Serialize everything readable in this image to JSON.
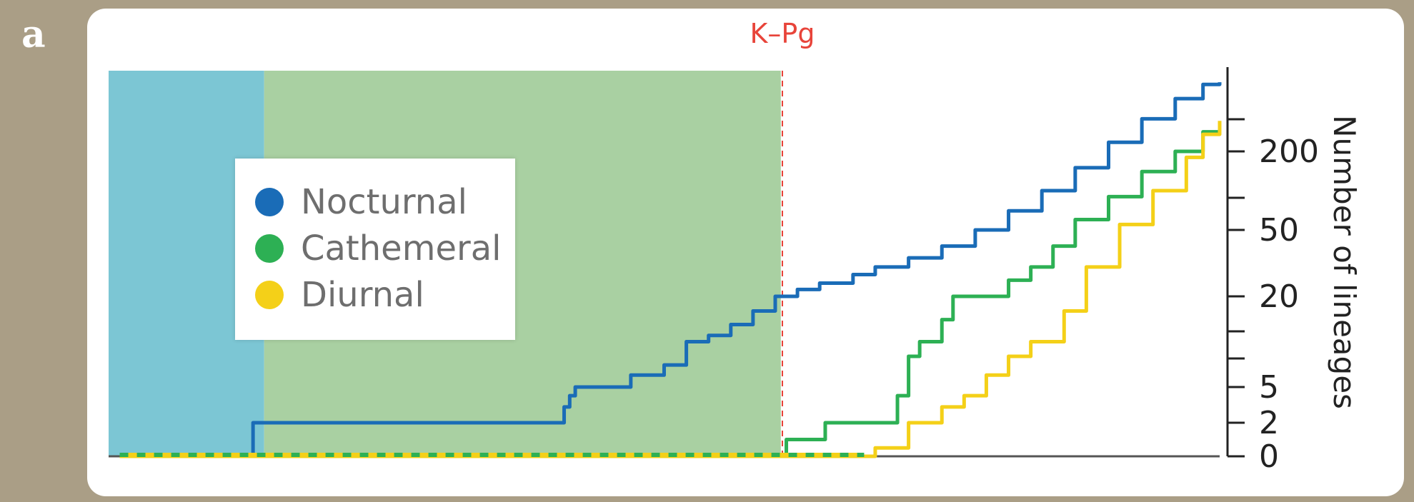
{
  "panel_label": "a",
  "chart_data": {
    "type": "line",
    "title": "",
    "xlabel": "",
    "ylabel": "Number of lineages",
    "y_scale": "log-like",
    "yticks_labeled": [
      "0",
      "2",
      "5",
      "20",
      "50",
      "200"
    ],
    "ylim": [
      0,
      600
    ],
    "annotation": "K–Pg",
    "legend": {
      "placement": "upper-left",
      "entries": [
        {
          "label": "Nocturnal",
          "color": "#1a6cb7"
        },
        {
          "label": "Cathemeral",
          "color": "#2db054"
        },
        {
          "label": "Diurnal",
          "color": "#f4d018"
        }
      ]
    },
    "background_bands": [
      {
        "color": "#7cc6d4",
        "from": 0.0,
        "to": 0.14
      },
      {
        "color": "#a9d0a2",
        "from": 0.14,
        "to": 0.605
      }
    ],
    "series": [
      {
        "name": "Nocturnal",
        "color": "#1a6cb7",
        "points": [
          [
            0.01,
            0
          ],
          [
            0.13,
            2
          ],
          [
            0.41,
            3
          ],
          [
            0.415,
            4
          ],
          [
            0.42,
            5
          ],
          [
            0.47,
            5
          ],
          [
            0.47,
            6
          ],
          [
            0.48,
            6
          ],
          [
            0.5,
            7
          ],
          [
            0.51,
            7
          ],
          [
            0.52,
            10
          ],
          [
            0.54,
            11
          ],
          [
            0.56,
            13
          ],
          [
            0.58,
            16
          ],
          [
            0.6,
            20
          ],
          [
            0.605,
            20
          ],
          [
            0.62,
            22
          ],
          [
            0.64,
            24
          ],
          [
            0.67,
            27
          ],
          [
            0.69,
            30
          ],
          [
            0.72,
            34
          ],
          [
            0.75,
            40
          ],
          [
            0.78,
            50
          ],
          [
            0.81,
            70
          ],
          [
            0.84,
            100
          ],
          [
            0.87,
            150
          ],
          [
            0.9,
            230
          ],
          [
            0.93,
            330
          ],
          [
            0.96,
            450
          ],
          [
            0.985,
            560
          ],
          [
            1.0,
            580
          ]
        ]
      },
      {
        "name": "Cathemeral",
        "color": "#2db054",
        "points": [
          [
            0.01,
            0
          ],
          [
            0.605,
            0
          ],
          [
            0.61,
            1
          ],
          [
            0.64,
            1
          ],
          [
            0.645,
            2
          ],
          [
            0.7,
            2
          ],
          [
            0.71,
            4
          ],
          [
            0.72,
            8
          ],
          [
            0.73,
            10
          ],
          [
            0.75,
            14
          ],
          [
            0.76,
            20
          ],
          [
            0.79,
            20
          ],
          [
            0.81,
            25
          ],
          [
            0.83,
            30
          ],
          [
            0.85,
            40
          ],
          [
            0.87,
            60
          ],
          [
            0.9,
            90
          ],
          [
            0.93,
            140
          ],
          [
            0.96,
            200
          ],
          [
            0.985,
            270
          ],
          [
            1.0,
            290
          ]
        ]
      },
      {
        "name": "Diurnal",
        "color": "#f4d018",
        "points": [
          [
            0.01,
            0
          ],
          [
            0.6,
            0
          ],
          [
            0.68,
            0
          ],
          [
            0.69,
            0.5
          ],
          [
            0.71,
            0.5
          ],
          [
            0.72,
            2
          ],
          [
            0.74,
            2
          ],
          [
            0.75,
            3
          ],
          [
            0.77,
            4
          ],
          [
            0.79,
            6
          ],
          [
            0.81,
            8
          ],
          [
            0.83,
            10
          ],
          [
            0.86,
            16
          ],
          [
            0.88,
            30
          ],
          [
            0.91,
            55
          ],
          [
            0.94,
            100
          ],
          [
            0.97,
            180
          ],
          [
            0.985,
            260
          ],
          [
            1.0,
            320
          ]
        ]
      }
    ]
  }
}
